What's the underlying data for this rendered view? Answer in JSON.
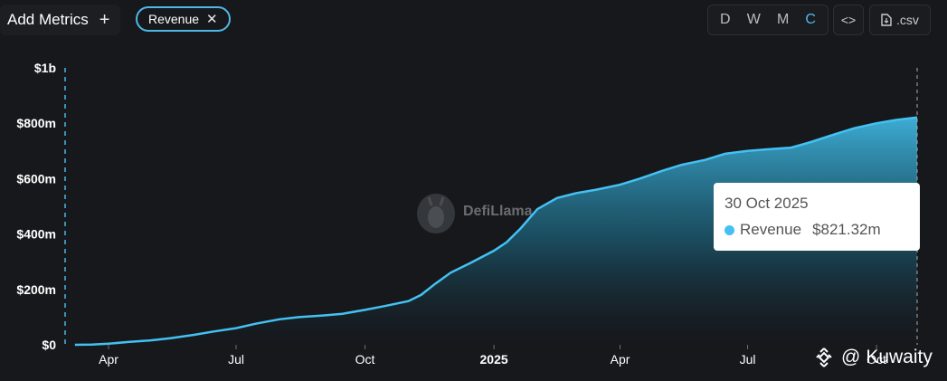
{
  "toolbar": {
    "add_metrics_label": "Add Metrics",
    "add_icon": "+",
    "metric_pill_label": "Revenue",
    "close_icon": "✕",
    "intervals": [
      "D",
      "W",
      "M",
      "C"
    ],
    "active_interval": "C",
    "embed_icon": "<>",
    "csv_label": ".csv"
  },
  "tooltip": {
    "date": "30 Oct 2025",
    "series": "Revenue",
    "value": "$821.32m"
  },
  "watermark": {
    "text": "DefiLlama"
  },
  "credit": {
    "at": "@",
    "name": "Kuwaity"
  },
  "colors": {
    "line": "#44c1f2",
    "accent": "#4fb8e8",
    "background": "#16181c"
  },
  "chart_data": {
    "type": "area",
    "x": [
      "2024-03-08",
      "2024-03-20",
      "2024-04-01",
      "2024-04-15",
      "2024-05-01",
      "2024-05-15",
      "2024-06-01",
      "2024-06-15",
      "2024-07-01",
      "2024-07-15",
      "2024-08-01",
      "2024-08-15",
      "2024-09-01",
      "2024-09-15",
      "2024-10-01",
      "2024-10-15",
      "2024-11-01",
      "2024-11-10",
      "2024-11-20",
      "2024-12-01",
      "2024-12-15",
      "2025-01-01",
      "2025-01-10",
      "2025-01-20",
      "2025-02-01",
      "2025-02-15",
      "2025-03-01",
      "2025-03-15",
      "2025-04-01",
      "2025-04-15",
      "2025-05-01",
      "2025-05-15",
      "2025-06-01",
      "2025-06-15",
      "2025-07-01",
      "2025-07-15",
      "2025-08-01",
      "2025-08-15",
      "2025-09-01",
      "2025-09-15",
      "2025-10-01",
      "2025-10-15",
      "2025-10-30"
    ],
    "series": [
      {
        "name": "Revenue",
        "values": [
          0,
          1,
          4,
          10,
          16,
          24,
          36,
          48,
          60,
          76,
          92,
          100,
          106,
          112,
          126,
          140,
          158,
          180,
          220,
          260,
          295,
          340,
          370,
          420,
          490,
          530,
          548,
          560,
          578,
          600,
          628,
          650,
          668,
          690,
          700,
          706,
          712,
          732,
          760,
          782,
          800,
          812,
          821.32
        ]
      }
    ],
    "ylim": [
      0,
      1000
    ],
    "yticks": [
      0,
      200,
      400,
      600,
      800,
      1000
    ],
    "ytick_labels": [
      "$0",
      "$200m",
      "$400m",
      "$600m",
      "$800m",
      "$1b"
    ],
    "xticks": [
      "2024-04-01",
      "2024-07-01",
      "2024-10-01",
      "2025-01-01",
      "2025-04-01",
      "2025-07-01",
      "2025-10-01"
    ],
    "xtick_labels": [
      "Apr",
      "Jul",
      "Oct",
      "2025",
      "Apr",
      "Jul",
      "Oct"
    ],
    "xtick_bold": [
      false,
      false,
      false,
      true,
      false,
      false,
      false
    ],
    "xlim": [
      "2024-03-01",
      "2025-10-30"
    ],
    "grid": false,
    "legend": "none"
  }
}
